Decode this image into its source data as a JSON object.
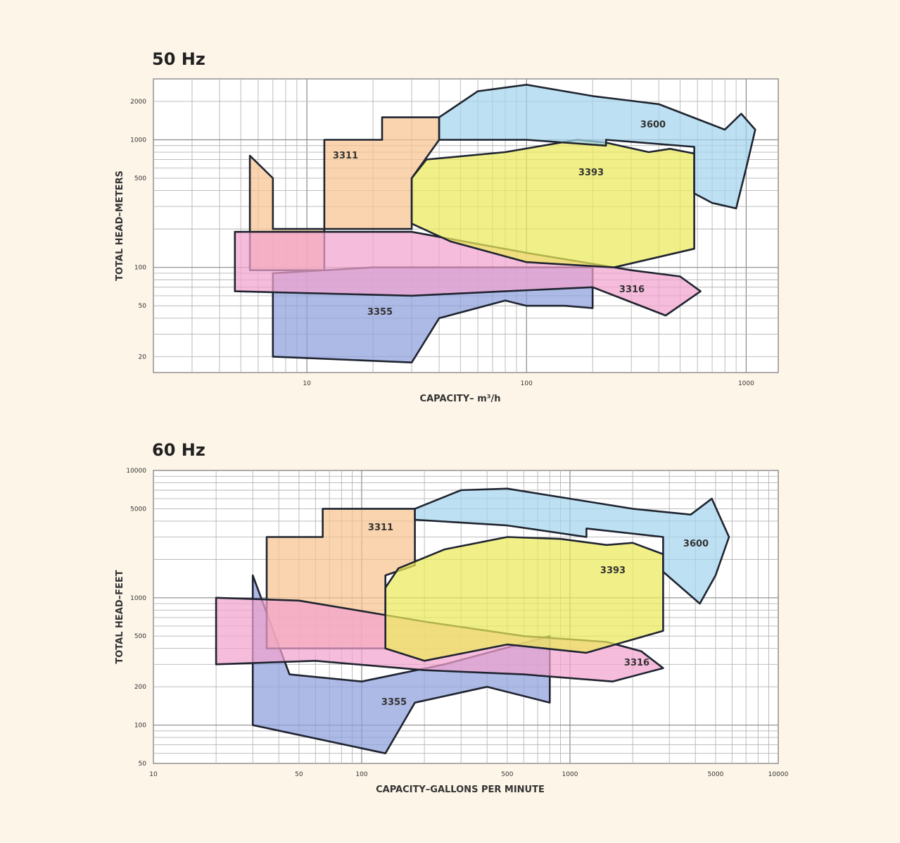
{
  "chart_data": [
    {
      "type": "area",
      "title": "50 Hz",
      "xlabel": "CAPACITY– m³/h",
      "ylabel": "TOTAL HEAD–METERS",
      "xscale": "log",
      "yscale": "log",
      "xlim": [
        2,
        1400
      ],
      "ylim": [
        15,
        3000
      ],
      "xticks": [
        "10",
        "100",
        "1000"
      ],
      "yticks": [
        "20",
        "50",
        "100",
        "500",
        "1000",
        "2000"
      ],
      "grid": true,
      "series": [
        {
          "name": "3355",
          "color": "#8e9fdc",
          "x": [
            7,
            7,
            30,
            40,
            80,
            100,
            150,
            200,
            200,
            20
          ],
          "y": [
            90,
            20,
            18,
            40,
            55,
            50,
            50,
            48,
            100,
            100
          ]
        },
        {
          "name": "3311",
          "color": "#f7c48f",
          "x": [
            5.5,
            5.5,
            12,
            12,
            22,
            22,
            40,
            40,
            30,
            30,
            7,
            7
          ],
          "y": [
            750,
            95,
            95,
            1000,
            1000,
            1500,
            1500,
            1000,
            500,
            200,
            200,
            500
          ]
        },
        {
          "name": "3316",
          "color": "#f3a2cf",
          "x": [
            4.7,
            4.7,
            30,
            80,
            200,
            430,
            620,
            500,
            300,
            100,
            30
          ],
          "y": [
            190,
            65,
            60,
            65,
            70,
            42,
            65,
            85,
            95,
            130,
            190
          ]
        },
        {
          "name": "3393",
          "color": "#ecea5a",
          "x": [
            30,
            30,
            45,
            100,
            250,
            580,
            580,
            450,
            360,
            230,
            170,
            80,
            35
          ],
          "y": [
            500,
            220,
            160,
            110,
            100,
            140,
            780,
            850,
            800,
            950,
            1000,
            800,
            700
          ]
        },
        {
          "name": "3600",
          "color": "#a3d5ef",
          "x": [
            40,
            40,
            100,
            230,
            230,
            580,
            580,
            700,
            900,
            1000,
            1100,
            950,
            800,
            400,
            200,
            100,
            60
          ],
          "y": [
            1500,
            1000,
            1000,
            900,
            1000,
            880,
            380,
            320,
            290,
            600,
            1200,
            1600,
            1200,
            1900,
            2200,
            2700,
            2400
          ]
        }
      ]
    },
    {
      "type": "area",
      "title": "60 Hz",
      "xlabel": "CAPACITY–GALLONS PER MINUTE",
      "ylabel": "TOTAL HEAD–FEET",
      "xscale": "log",
      "yscale": "log",
      "xlim": [
        10,
        10000
      ],
      "ylim": [
        50,
        10000
      ],
      "xticks": [
        "10",
        "50",
        "100",
        "500",
        "1000",
        "5000",
        "10000"
      ],
      "yticks": [
        "50",
        "100",
        "200",
        "500",
        "1000",
        "5000",
        "10000"
      ],
      "grid": true,
      "series": [
        {
          "name": "3355",
          "color": "#8e9fdc",
          "x": [
            30,
            30,
            130,
            180,
            400,
            800,
            800,
            250,
            100,
            45
          ],
          "y": [
            1500,
            100,
            60,
            150,
            200,
            150,
            500,
            300,
            220,
            250
          ]
        },
        {
          "name": "3311",
          "color": "#f7c48f",
          "x": [
            35,
            35,
            130,
            130,
            180,
            180,
            65,
            65
          ],
          "y": [
            3000,
            400,
            400,
            1500,
            1800,
            5000,
            5000,
            3000
          ]
        },
        {
          "name": "3316",
          "color": "#f3a2cf",
          "x": [
            20,
            20,
            60,
            200,
            600,
            1600,
            2800,
            2200,
            1500,
            600,
            200,
            50
          ],
          "y": [
            1000,
            300,
            320,
            270,
            250,
            220,
            280,
            380,
            450,
            500,
            650,
            950
          ]
        },
        {
          "name": "3393",
          "color": "#ecea5a",
          "x": [
            130,
            130,
            200,
            500,
            1200,
            2800,
            2800,
            2000,
            1500,
            900,
            500,
            250,
            150
          ],
          "y": [
            1200,
            400,
            320,
            430,
            370,
            550,
            2200,
            2700,
            2600,
            2900,
            3000,
            2400,
            1700
          ]
        },
        {
          "name": "3600",
          "color": "#a3d5ef",
          "x": [
            180,
            180,
            500,
            1200,
            1200,
            2800,
            2800,
            4200,
            5000,
            5800,
            4800,
            3800,
            2000,
            1000,
            500,
            300
          ],
          "y": [
            5000,
            4100,
            3700,
            3000,
            3500,
            3000,
            1600,
            900,
            1500,
            3000,
            6000,
            4500,
            5000,
            6000,
            7200,
            7000
          ]
        }
      ]
    }
  ]
}
